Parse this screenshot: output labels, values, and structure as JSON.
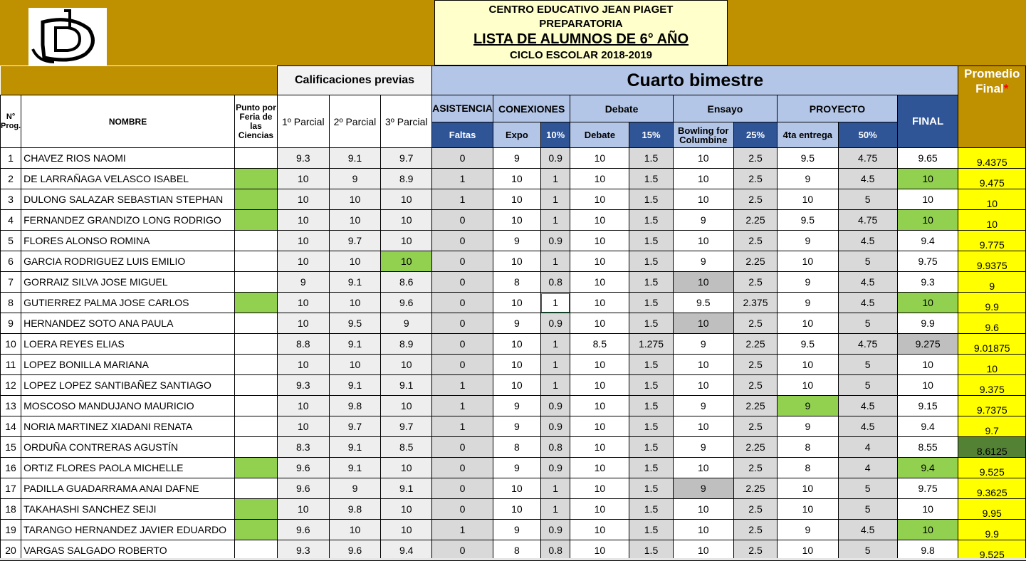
{
  "header": {
    "line1": "CENTRO EDUCATIVO JEAN PIAGET",
    "line2": "PREPARATORIA",
    "line3": "LISTA DE ALUMNOS DE 6° AÑO",
    "line4": "CICLO ESCOLAR 2018-2019",
    "logo_icon": "jp-logo-icon"
  },
  "groups": {
    "previas": "Calificaciones previas",
    "cuarto": "Cuarto bimestre",
    "promedio": "Promedio Final",
    "promedio_mark": "*"
  },
  "columns": {
    "num": "N° Prog.",
    "nombre": "NOMBRE",
    "punto": "Punto por Feria de las Ciencias",
    "p1": "1º Parcial",
    "p2": "2º Parcial",
    "p3": "3º Parcial",
    "asistencia": "ASISTENCIA",
    "faltas": "Faltas",
    "conexiones": "CONEXIONES",
    "expo": "Expo",
    "expo_pct": "10%",
    "debate": "Debate",
    "debate_sub": "Debate",
    "debate_pct": "15%",
    "ensayo": "Ensayo",
    "ensayo_sub": "Bowling for Columbine",
    "ensayo_pct": "25%",
    "proyecto": "PROYECTO",
    "proyecto_sub": "4ta entrega",
    "proyecto_pct": "50%",
    "final": "FINAL"
  },
  "rows": [
    {
      "n": "1",
      "name": "CHAVEZ RIOS NAOMI",
      "p1": "9.3",
      "p2": "9.1",
      "p3": "9.7",
      "f": "0",
      "ex": "9",
      "exp": "0.9",
      "db": "10",
      "dbp": "1.5",
      "en": "10",
      "enp": "2.5",
      "pr": "9.5",
      "prp": "4.75",
      "fin": "9.65",
      "prom": "9.4375"
    },
    {
      "n": "2",
      "name": "DE LARRAÑAGA VELASCO ISABEL",
      "p1": "10",
      "p2": "9",
      "p3": "8.9",
      "f": "1",
      "ex": "10",
      "exp": "1",
      "db": "10",
      "dbp": "1.5",
      "en": "10",
      "enp": "2.5",
      "pr": "9",
      "prp": "4.5",
      "fin": "10",
      "prom": "9.475"
    },
    {
      "n": "3",
      "name": "DULONG SALAZAR SEBASTIAN STEPHAN",
      "p1": "10",
      "p2": "10",
      "p3": "10",
      "f": "1",
      "ex": "10",
      "exp": "1",
      "db": "10",
      "dbp": "1.5",
      "en": "10",
      "enp": "2.5",
      "pr": "10",
      "prp": "5",
      "fin": "10",
      "prom": "10"
    },
    {
      "n": "4",
      "name": "FERNANDEZ GRANDIZO LONG RODRIGO",
      "p1": "10",
      "p2": "10",
      "p3": "10",
      "f": "0",
      "ex": "10",
      "exp": "1",
      "db": "10",
      "dbp": "1.5",
      "en": "9",
      "enp": "2.25",
      "pr": "9.5",
      "prp": "4.75",
      "fin": "10",
      "prom": "10"
    },
    {
      "n": "5",
      "name": "FLORES ALONSO ROMINA",
      "p1": "10",
      "p2": "9.7",
      "p3": "10",
      "f": "0",
      "ex": "9",
      "exp": "0.9",
      "db": "10",
      "dbp": "1.5",
      "en": "10",
      "enp": "2.5",
      "pr": "9",
      "prp": "4.5",
      "fin": "9.4",
      "prom": "9.775"
    },
    {
      "n": "6",
      "name": "GARCIA RODRIGUEZ LUIS EMILIO",
      "p1": "10",
      "p2": "10",
      "p3": "10",
      "f": "0",
      "ex": "10",
      "exp": "1",
      "db": "10",
      "dbp": "1.5",
      "en": "9",
      "enp": "2.25",
      "pr": "10",
      "prp": "5",
      "fin": "9.75",
      "prom": "9.9375"
    },
    {
      "n": "7",
      "name": "GORRAIZ SILVA JOSE MIGUEL",
      "p1": "9",
      "p2": "9.1",
      "p3": "8.6",
      "f": "0",
      "ex": "8",
      "exp": "0.8",
      "db": "10",
      "dbp": "1.5",
      "en": "10",
      "enp": "2.5",
      "pr": "9",
      "prp": "4.5",
      "fin": "9.3",
      "prom": "9"
    },
    {
      "n": "8",
      "name": "GUTIERREZ PALMA JOSE CARLOS",
      "p1": "10",
      "p2": "10",
      "p3": "9.6",
      "f": "0",
      "ex": "10",
      "exp": "1",
      "db": "10",
      "dbp": "1.5",
      "en": "9.5",
      "enp": "2.375",
      "pr": "9",
      "prp": "4.5",
      "fin": "10",
      "prom": "9.9"
    },
    {
      "n": "9",
      "name": "HERNANDEZ SOTO ANA PAULA",
      "p1": "10",
      "p2": "9.5",
      "p3": "9",
      "f": "0",
      "ex": "9",
      "exp": "0.9",
      "db": "10",
      "dbp": "1.5",
      "en": "10",
      "enp": "2.5",
      "pr": "10",
      "prp": "5",
      "fin": "9.9",
      "prom": "9.6"
    },
    {
      "n": "10",
      "name": "LOERA REYES ELIAS",
      "p1": "8.8",
      "p2": "9.1",
      "p3": "8.9",
      "f": "0",
      "ex": "10",
      "exp": "1",
      "db": "8.5",
      "dbp": "1.275",
      "en": "9",
      "enp": "2.25",
      "pr": "9.5",
      "prp": "4.75",
      "fin": "9.275",
      "prom": "9.01875"
    },
    {
      "n": "11",
      "name": "LOPEZ BONILLA MARIANA",
      "p1": "10",
      "p2": "10",
      "p3": "10",
      "f": "0",
      "ex": "10",
      "exp": "1",
      "db": "10",
      "dbp": "1.5",
      "en": "10",
      "enp": "2.5",
      "pr": "10",
      "prp": "5",
      "fin": "10",
      "prom": "10"
    },
    {
      "n": "12",
      "name": "LOPEZ LOPEZ SANTIBAÑEZ SANTIAGO",
      "p1": "9.3",
      "p2": "9.1",
      "p3": "9.1",
      "f": "1",
      "ex": "10",
      "exp": "1",
      "db": "10",
      "dbp": "1.5",
      "en": "10",
      "enp": "2.5",
      "pr": "10",
      "prp": "5",
      "fin": "10",
      "prom": "9.375"
    },
    {
      "n": "13",
      "name": "MOSCOSO MANDUJANO MAURICIO",
      "p1": "10",
      "p2": "9.8",
      "p3": "10",
      "f": "1",
      "ex": "9",
      "exp": "0.9",
      "db": "10",
      "dbp": "1.5",
      "en": "9",
      "enp": "2.25",
      "pr": "9",
      "prp": "4.5",
      "fin": "9.15",
      "prom": "9.7375"
    },
    {
      "n": "14",
      "name": "NORIA MARTINEZ XIADANI RENATA",
      "p1": "10",
      "p2": "9.7",
      "p3": "9.7",
      "f": "1",
      "ex": "9",
      "exp": "0.9",
      "db": "10",
      "dbp": "1.5",
      "en": "10",
      "enp": "2.5",
      "pr": "9",
      "prp": "4.5",
      "fin": "9.4",
      "prom": "9.7"
    },
    {
      "n": "15",
      "name": "ORDUÑA CONTRERAS AGUSTÍN",
      "p1": "8.3",
      "p2": "9.1",
      "p3": "8.5",
      "f": "0",
      "ex": "8",
      "exp": "0.8",
      "db": "10",
      "dbp": "1.5",
      "en": "9",
      "enp": "2.25",
      "pr": "8",
      "prp": "4",
      "fin": "8.55",
      "prom": "8.6125"
    },
    {
      "n": "16",
      "name": "ORTIZ FLORES PAOLA MICHELLE",
      "p1": "9.6",
      "p2": "9.1",
      "p3": "10",
      "f": "0",
      "ex": "9",
      "exp": "0.9",
      "db": "10",
      "dbp": "1.5",
      "en": "10",
      "enp": "2.5",
      "pr": "8",
      "prp": "4",
      "fin": "9.4",
      "prom": "9.525"
    },
    {
      "n": "17",
      "name": "PADILLA GUADARRAMA ANAI DAFNE",
      "p1": "9.6",
      "p2": "9",
      "p3": "9.1",
      "f": "0",
      "ex": "10",
      "exp": "1",
      "db": "10",
      "dbp": "1.5",
      "en": "9",
      "enp": "2.25",
      "pr": "10",
      "prp": "5",
      "fin": "9.75",
      "prom": "9.3625"
    },
    {
      "n": "18",
      "name": "TAKAHASHI SANCHEZ SEIJI",
      "p1": "10",
      "p2": "9.8",
      "p3": "10",
      "f": "0",
      "ex": "10",
      "exp": "1",
      "db": "10",
      "dbp": "1.5",
      "en": "10",
      "enp": "2.5",
      "pr": "10",
      "prp": "5",
      "fin": "10",
      "prom": "9.95"
    },
    {
      "n": "19",
      "name": "TARANGO HERNANDEZ JAVIER EDUARDO",
      "p1": "9.6",
      "p2": "10",
      "p3": "10",
      "f": "1",
      "ex": "9",
      "exp": "0.9",
      "db": "10",
      "dbp": "1.5",
      "en": "10",
      "enp": "2.5",
      "pr": "9",
      "prp": "4.5",
      "fin": "10",
      "prom": "9.9"
    },
    {
      "n": "20",
      "name": "VARGAS SALGADO ROBERTO",
      "p1": "9.3",
      "p2": "9.6",
      "p3": "9.4",
      "f": "0",
      "ex": "8",
      "exp": "0.8",
      "db": "10",
      "dbp": "1.5",
      "en": "10",
      "enp": "2.5",
      "pr": "10",
      "prp": "5",
      "fin": "9.8",
      "prom": "9.525"
    }
  ],
  "colors": {
    "gold": "#bf9000",
    "header_blue": "#b4c6e7",
    "dark_blue": "#2f5597",
    "green": "#92d050",
    "yellow": "#ffff00",
    "dark_green": "#548235",
    "gray": "#d9d9d9"
  }
}
